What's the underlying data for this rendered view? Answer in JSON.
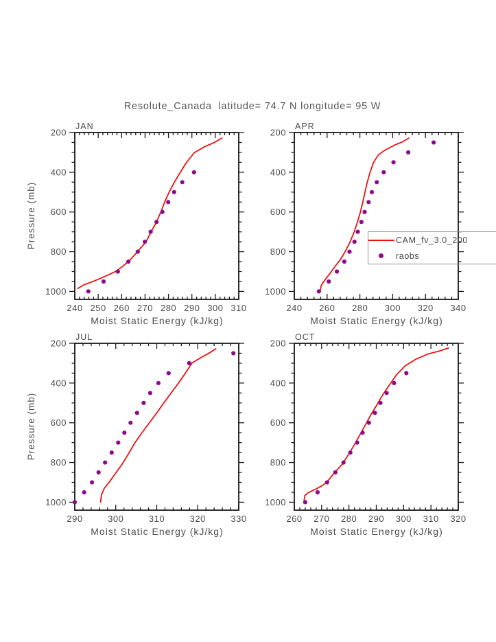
{
  "title": "Resolute_Canada  latitude= 74.7 N longitude= 95 W",
  "xlabel": "Moist Static Energy (kJ/kg)",
  "ylabel": "Pressure (mb)",
  "legend": {
    "line_label": "CAM_fv_3.0_200",
    "dot_label": "raobs"
  },
  "colors": {
    "line": "#ee1010",
    "dots": "#8b0b8b",
    "axis": "#181818",
    "text": "#4c4c4c"
  },
  "chart_data": [
    {
      "type": "line",
      "panel_label": "JAN",
      "xlabel": "Moist Static Energy (kJ/kg)",
      "ylabel": "Pressure (mb)",
      "xlim": [
        240,
        310
      ],
      "x_major": 10,
      "x_minor": 2,
      "ylim": [
        200,
        1040
      ],
      "y_ticks": [
        200,
        400,
        600,
        800,
        1000
      ],
      "y_minor": 50,
      "y_axis_reversed_downward": true,
      "grid": false,
      "series": [
        {
          "name": "CAM_fv_3.0_200",
          "kind": "line",
          "points": [
            [
              241.3,
              985
            ],
            [
              244,
              966
            ],
            [
              247.5,
              951
            ],
            [
              251,
              934
            ],
            [
              254.5,
              916
            ],
            [
              257.5,
              899
            ],
            [
              260.5,
              873
            ],
            [
              263.3,
              845
            ],
            [
              265.8,
              813
            ],
            [
              268.3,
              779
            ],
            [
              270.4,
              751
            ],
            [
              272.5,
              702
            ],
            [
              274.8,
              652
            ],
            [
              276.7,
              602
            ],
            [
              278.3,
              552
            ],
            [
              280.2,
              502
            ],
            [
              282.4,
              452
            ],
            [
              285,
              402
            ],
            [
              287.6,
              352
            ],
            [
              291,
              302
            ],
            [
              295.3,
              272
            ],
            [
              299.3,
              252
            ],
            [
              302.8,
              228
            ]
          ]
        },
        {
          "name": "raobs",
          "kind": "scatter",
          "points": [
            [
              245.8,
              1000
            ],
            [
              252.3,
              950
            ],
            [
              258.4,
              900
            ],
            [
              262.9,
              850
            ],
            [
              266.9,
              800
            ],
            [
              269.9,
              750
            ],
            [
              272.4,
              700
            ],
            [
              274.9,
              650
            ],
            [
              277.4,
              600
            ],
            [
              279.9,
              550
            ],
            [
              282.4,
              500
            ],
            [
              285.9,
              450
            ],
            [
              290.9,
              400
            ]
          ]
        }
      ]
    },
    {
      "type": "line",
      "panel_label": "APR",
      "xlabel": "Moist Static Energy (kJ/kg)",
      "ylabel": "Pressure (mb)",
      "xlim": [
        240,
        340
      ],
      "x_major": 20,
      "x_minor": 4,
      "ylim": [
        200,
        1040
      ],
      "y_ticks": [
        200,
        400,
        600,
        800,
        1000
      ],
      "y_minor": 50,
      "y_axis_reversed_downward": true,
      "grid": false,
      "series": [
        {
          "name": "CAM_fv_3.0_200",
          "kind": "line",
          "points": [
            [
              256,
              992
            ],
            [
              256.3,
              972
            ],
            [
              257.7,
              953
            ],
            [
              260,
              928
            ],
            [
              262.3,
              903
            ],
            [
              265.3,
              869
            ],
            [
              268,
              841
            ],
            [
              270.9,
              801
            ],
            [
              273.9,
              753
            ],
            [
              276.4,
              703
            ],
            [
              278.4,
              653
            ],
            [
              280.2,
              603
            ],
            [
              281.7,
              553
            ],
            [
              283,
              503
            ],
            [
              284.4,
              453
            ],
            [
              286.1,
              403
            ],
            [
              288.2,
              353
            ],
            [
              291.2,
              313
            ],
            [
              295.3,
              289
            ],
            [
              301,
              264
            ],
            [
              306,
              247
            ],
            [
              309.8,
              228
            ]
          ]
        },
        {
          "name": "raobs",
          "kind": "scatter",
          "points": [
            [
              255,
              1000
            ],
            [
              261,
              950
            ],
            [
              266,
              900
            ],
            [
              270.5,
              850
            ],
            [
              273.7,
              800
            ],
            [
              276.7,
              750
            ],
            [
              278.7,
              700
            ],
            [
              280.9,
              650
            ],
            [
              282.9,
              600
            ],
            [
              285.3,
              550
            ],
            [
              287.3,
              500
            ],
            [
              290.3,
              450
            ],
            [
              294.5,
              400
            ],
            [
              300.5,
              350
            ],
            [
              309.5,
              300
            ],
            [
              325,
              250
            ]
          ]
        }
      ]
    },
    {
      "type": "line",
      "panel_label": "JUL",
      "xlabel": "Moist Static Energy (kJ/kg)",
      "ylabel": "Pressure (mb)",
      "xlim": [
        290,
        330
      ],
      "x_major": 10,
      "x_minor": 2,
      "ylim": [
        200,
        1040
      ],
      "y_ticks": [
        200,
        400,
        600,
        800,
        1000
      ],
      "y_minor": 50,
      "y_axis_reversed_downward": true,
      "grid": false,
      "series": [
        {
          "name": "CAM_fv_3.0_200",
          "kind": "line",
          "points": [
            [
              296.3,
              1000
            ],
            [
              296.5,
              964
            ],
            [
              297.2,
              930
            ],
            [
              298.4,
              899
            ],
            [
              300,
              853
            ],
            [
              301.7,
              804
            ],
            [
              303.2,
              753
            ],
            [
              304.6,
              703
            ],
            [
              306.3,
              653
            ],
            [
              308.1,
              603
            ],
            [
              309.9,
              553
            ],
            [
              311.6,
              503
            ],
            [
              313.4,
              453
            ],
            [
              315.2,
              403
            ],
            [
              316.9,
              353
            ],
            [
              318.6,
              299
            ],
            [
              320.6,
              274
            ],
            [
              322.6,
              251
            ],
            [
              324.4,
              228
            ]
          ]
        },
        {
          "name": "raobs",
          "kind": "scatter",
          "points": [
            [
              290,
              1000
            ],
            [
              292.3,
              950
            ],
            [
              294.2,
              900
            ],
            [
              295.8,
              850
            ],
            [
              297.4,
              800
            ],
            [
              299,
              750
            ],
            [
              300.6,
              700
            ],
            [
              302.1,
              650
            ],
            [
              303.6,
              600
            ],
            [
              305.2,
              550
            ],
            [
              306.8,
              500
            ],
            [
              308.4,
              450
            ],
            [
              310.4,
              400
            ],
            [
              312.9,
              350
            ],
            [
              317.9,
              300
            ],
            [
              328.7,
              250
            ]
          ]
        }
      ]
    },
    {
      "type": "line",
      "panel_label": "OCT",
      "xlabel": "Moist Static Energy (kJ/kg)",
      "ylabel": "Pressure (mb)",
      "xlim": [
        260,
        320
      ],
      "x_major": 10,
      "x_minor": 2,
      "ylim": [
        200,
        1040
      ],
      "y_ticks": [
        200,
        400,
        600,
        800,
        1000
      ],
      "y_minor": 50,
      "y_axis_reversed_downward": true,
      "grid": false,
      "series": [
        {
          "name": "CAM_fv_3.0_200",
          "kind": "line",
          "points": [
            [
              263.6,
              990
            ],
            [
              263.9,
              966
            ],
            [
              265.2,
              951
            ],
            [
              267.9,
              934
            ],
            [
              270.4,
              915
            ],
            [
              271.9,
              899
            ],
            [
              274.6,
              853
            ],
            [
              277.6,
              808
            ],
            [
              279.9,
              758
            ],
            [
              282.1,
              708
            ],
            [
              284.1,
              658
            ],
            [
              286.1,
              608
            ],
            [
              288.1,
              558
            ],
            [
              290.3,
              508
            ],
            [
              292.4,
              458
            ],
            [
              294.9,
              408
            ],
            [
              297.4,
              358
            ],
            [
              300.6,
              313
            ],
            [
              304.6,
              279
            ],
            [
              308.9,
              254
            ],
            [
              313,
              239
            ],
            [
              316.4,
              224
            ]
          ]
        },
        {
          "name": "raobs",
          "kind": "scatter",
          "points": [
            [
              264,
              1000
            ],
            [
              268.5,
              950
            ],
            [
              272,
              900
            ],
            [
              275,
              850
            ],
            [
              278,
              800
            ],
            [
              280.5,
              750
            ],
            [
              283,
              700
            ],
            [
              285,
              650
            ],
            [
              287.3,
              600
            ],
            [
              289.5,
              550
            ],
            [
              291.5,
              500
            ],
            [
              293.8,
              450
            ],
            [
              296.5,
              400
            ],
            [
              301,
              350
            ]
          ]
        }
      ]
    }
  ]
}
